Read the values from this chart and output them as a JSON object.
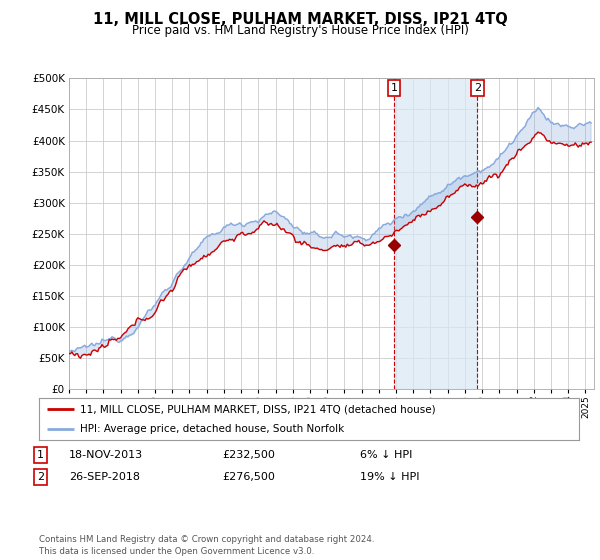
{
  "title": "11, MILL CLOSE, PULHAM MARKET, DISS, IP21 4TQ",
  "subtitle": "Price paid vs. HM Land Registry's House Price Index (HPI)",
  "ylim": [
    0,
    500000
  ],
  "yticks": [
    0,
    50000,
    100000,
    150000,
    200000,
    250000,
    300000,
    350000,
    400000,
    450000,
    500000
  ],
  "ytick_labels": [
    "£0",
    "£50K",
    "£100K",
    "£150K",
    "£200K",
    "£250K",
    "£300K",
    "£350K",
    "£400K",
    "£450K",
    "£500K"
  ],
  "sale1_date": 2013.88,
  "sale1_price": 232500,
  "sale2_date": 2018.73,
  "sale2_price": 276500,
  "hpi_color": "#88aadd",
  "hpi_fill_color": "#d8e8f5",
  "price_color": "#cc0000",
  "marker_color": "#990000",
  "grid_color": "#cccccc",
  "background_color": "#ffffff",
  "legend_label_price": "11, MILL CLOSE, PULHAM MARKET, DISS, IP21 4TQ (detached house)",
  "legend_label_hpi": "HPI: Average price, detached house, South Norfolk",
  "footer": "Contains HM Land Registry data © Crown copyright and database right 2024.\nThis data is licensed under the Open Government Licence v3.0.",
  "xmin": 1995.0,
  "xmax": 2025.5,
  "figwidth": 6.0,
  "figheight": 5.6
}
